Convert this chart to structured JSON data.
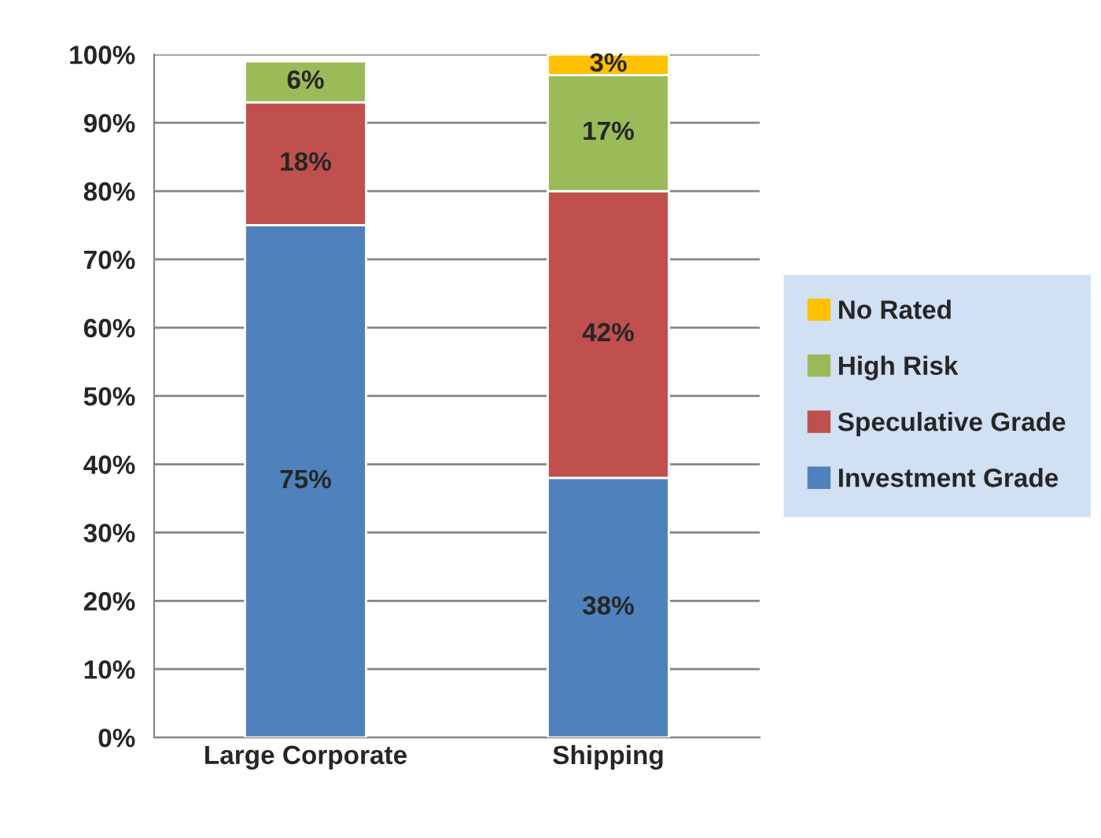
{
  "chart_data": {
    "type": "bar",
    "stacked": true,
    "categories": [
      "Large Corporate",
      "Shipping"
    ],
    "series": [
      {
        "name": "Investment Grade",
        "color": "#4f81bd",
        "values": [
          75,
          38
        ],
        "value_labels": [
          "75%",
          "38%"
        ]
      },
      {
        "name": "Speculative Grade",
        "color": "#c0504d",
        "values": [
          18,
          42
        ],
        "value_labels": [
          "18%",
          "42%"
        ]
      },
      {
        "name": "High Risk",
        "color": "#9bbb59",
        "values": [
          6,
          17
        ],
        "value_labels": [
          "6%",
          "17%"
        ]
      },
      {
        "name": "No Rated",
        "color": "#ffc000",
        "values": [
          null,
          3
        ],
        "value_labels": [
          null,
          "3%"
        ]
      }
    ],
    "ylim": [
      0,
      100
    ],
    "yticks": [
      {
        "value": 0,
        "label": "0%"
      },
      {
        "value": 10,
        "label": "10%"
      },
      {
        "value": 20,
        "label": "20%"
      },
      {
        "value": 30,
        "label": "30%"
      },
      {
        "value": 40,
        "label": "40%"
      },
      {
        "value": 50,
        "label": "50%"
      },
      {
        "value": 60,
        "label": "60%"
      },
      {
        "value": 70,
        "label": "70%"
      },
      {
        "value": 80,
        "label": "80%"
      },
      {
        "value": 90,
        "label": "90%"
      },
      {
        "value": 100,
        "label": "100%"
      }
    ],
    "grid": "y",
    "legend": "right"
  }
}
